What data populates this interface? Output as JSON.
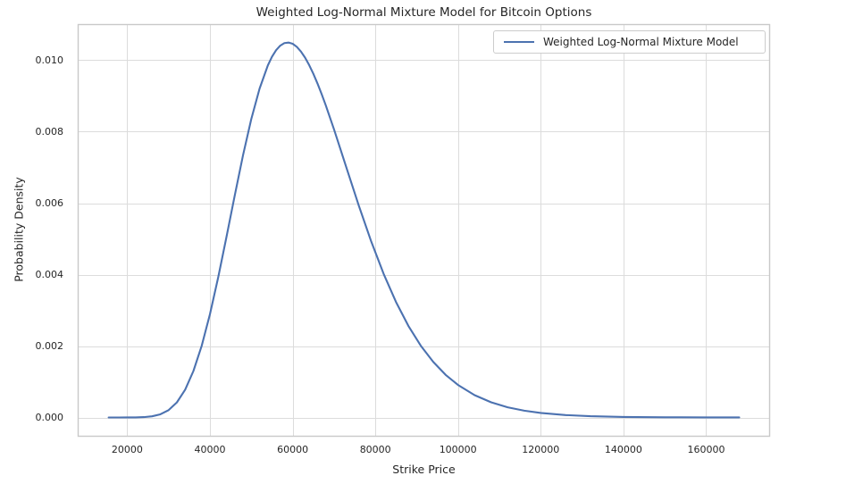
{
  "colors": {
    "line": "#4C72B0",
    "grid": "#dcdcdc",
    "spine": "#c9c9c9",
    "text": "#262626",
    "background": "#ffffff"
  },
  "chart_data": {
    "type": "line",
    "title": "Weighted Log-Normal Mixture Model for Bitcoin Options",
    "xlabel": "Strike Price",
    "ylabel": "Probability Density",
    "grid": true,
    "legend_position": "upper right",
    "xlim": [
      8130,
      175350
    ],
    "ylim": [
      -0.000525,
      0.011
    ],
    "x_ticks": [
      20000,
      40000,
      60000,
      80000,
      100000,
      120000,
      140000,
      160000
    ],
    "x_tick_labels": [
      "20000",
      "40000",
      "60000",
      "80000",
      "100000",
      "120000",
      "140000",
      "160000"
    ],
    "y_ticks": [
      0.0,
      0.002,
      0.004,
      0.006,
      0.008,
      0.01
    ],
    "y_tick_labels": [
      "0.000",
      "0.002",
      "0.004",
      "0.006",
      "0.008",
      "0.010"
    ],
    "series": [
      {
        "name": "Weighted Log-Normal Mixture Model",
        "color": "#4C72B0",
        "peak": {
          "x": 58800,
          "y": 0.0105
        },
        "x": [
          15500,
          18000,
          20000,
          22000,
          24000,
          26000,
          28000,
          30000,
          32000,
          34000,
          36000,
          38000,
          40000,
          42000,
          44000,
          46000,
          48000,
          50000,
          52000,
          54000,
          55000,
          56000,
          57000,
          58000,
          59000,
          60000,
          61000,
          62000,
          63000,
          64000,
          65000,
          66000,
          67000,
          68000,
          70000,
          73000,
          76000,
          79000,
          82000,
          85000,
          88000,
          91000,
          94000,
          97000,
          100000,
          104000,
          108000,
          112000,
          116000,
          120000,
          126000,
          132000,
          140000,
          150000,
          160000,
          168000
        ],
        "y": [
          0.0,
          1e-07,
          4e-07,
          2.4e-06,
          9.8e-06,
          3.24e-05,
          8.8e-05,
          0.000206,
          0.000422,
          0.000777,
          0.0013,
          0.002005,
          0.00289,
          0.003926,
          0.005056,
          0.006218,
          0.007342,
          0.008356,
          0.009206,
          0.009856,
          0.010099,
          0.010282,
          0.01041,
          0.010481,
          0.010496,
          0.010462,
          0.010376,
          0.010246,
          0.010075,
          0.009865,
          0.009623,
          0.009352,
          0.009056,
          0.008742,
          0.008067,
          0.006996,
          0.00593,
          0.004927,
          0.004021,
          0.003232,
          0.002562,
          0.002007,
          0.001556,
          0.001193,
          0.00091,
          0.000625,
          0.000425,
          0.000285,
          0.000191,
          0.000127,
          6.8e-05,
          3.6e-05,
          1.53e-05,
          5.2e-06,
          1.7e-06,
          7e-07
        ]
      }
    ]
  }
}
